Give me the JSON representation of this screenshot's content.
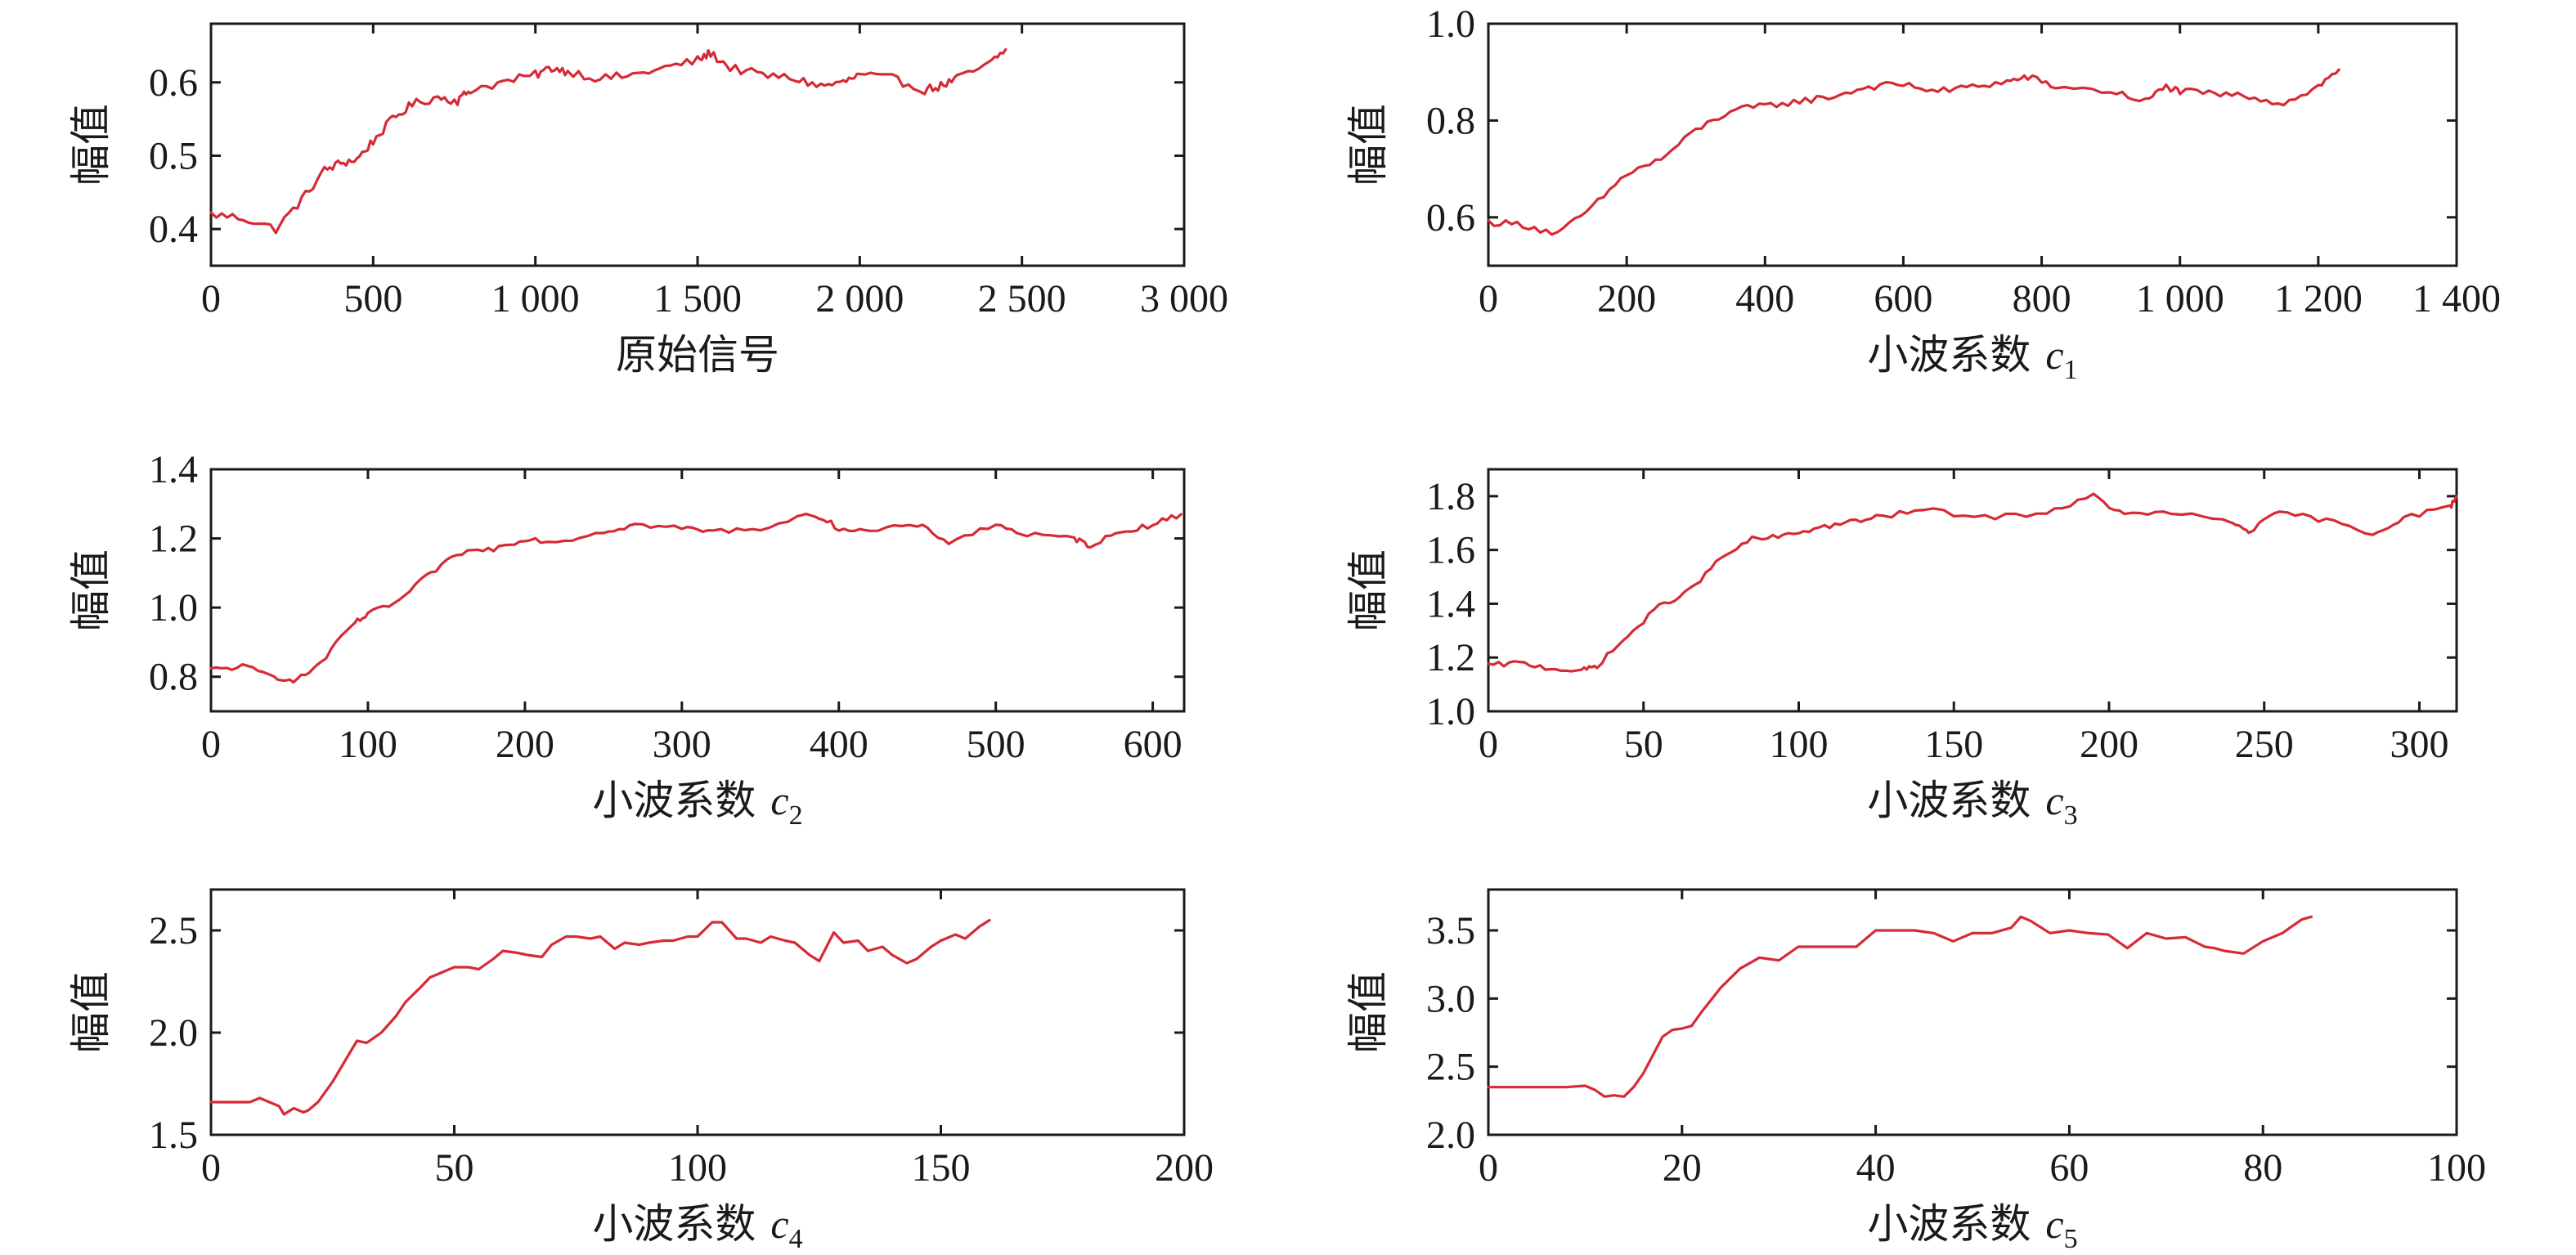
{
  "chart_data": [
    {
      "type": "line",
      "xlabel": "原始信号",
      "xlabel_sub": "",
      "ylabel": "幅值",
      "xlim": [
        0,
        3000
      ],
      "ylim": [
        0.35,
        0.68
      ],
      "xticks": [
        0,
        500,
        1000,
        1500,
        2000,
        2500,
        3000
      ],
      "xtick_labels": [
        "0",
        "500",
        "1 000",
        "1 500",
        "2 000",
        "2 500",
        "3 000"
      ],
      "yticks": [
        0.4,
        0.5,
        0.6
      ],
      "ytick_labels": [
        "0.4",
        "0.5",
        "0.6"
      ],
      "grid": false,
      "color": "#d62a36",
      "noise": 0.006,
      "series": [
        {
          "x": [
            0,
            100,
            200,
            280,
            350,
            400,
            450,
            500,
            560,
            620,
            700,
            760,
            800,
            900,
            1000,
            1050,
            1100,
            1200,
            1300,
            1400,
            1500,
            1540,
            1600,
            1700,
            1800,
            1880,
            1950,
            2000,
            2100,
            2200,
            2250,
            2300,
            2400,
            2450
          ],
          "y": [
            0.42,
            0.415,
            0.4,
            0.44,
            0.48,
            0.49,
            0.495,
            0.52,
            0.55,
            0.57,
            0.58,
            0.575,
            0.59,
            0.6,
            0.61,
            0.62,
            0.615,
            0.605,
            0.61,
            0.62,
            0.63,
            0.64,
            0.62,
            0.61,
            0.605,
            0.595,
            0.6,
            0.61,
            0.605,
            0.59,
            0.595,
            0.605,
            0.625,
            0.645
          ]
        }
      ]
    },
    {
      "type": "line",
      "xlabel": "小波系数",
      "xlabel_sub": "1",
      "ylabel": "幅值",
      "xlim": [
        0,
        1400
      ],
      "ylim": [
        0.5,
        1.0
      ],
      "xticks": [
        0,
        200,
        400,
        600,
        800,
        1000,
        1200,
        1400
      ],
      "xtick_labels": [
        "0",
        "200",
        "400",
        "600",
        "800",
        "1 000",
        "1 200",
        "1 400"
      ],
      "yticks": [
        0.6,
        0.8,
        1.0
      ],
      "ytick_labels": [
        "0.6",
        "0.8",
        "1.0"
      ],
      "grid": false,
      "color": "#d62a36",
      "noise": 0.007,
      "series": [
        {
          "x": [
            0,
            50,
            100,
            150,
            200,
            250,
            300,
            350,
            400,
            450,
            500,
            550,
            600,
            650,
            700,
            750,
            780,
            820,
            900,
            950,
            980,
            1000,
            1050,
            1100,
            1150,
            1200,
            1230
          ],
          "y": [
            0.59,
            0.585,
            0.565,
            0.62,
            0.69,
            0.72,
            0.78,
            0.82,
            0.83,
            0.84,
            0.85,
            0.87,
            0.875,
            0.86,
            0.87,
            0.88,
            0.89,
            0.87,
            0.86,
            0.84,
            0.87,
            0.86,
            0.855,
            0.85,
            0.835,
            0.87,
            0.905
          ]
        }
      ]
    },
    {
      "type": "line",
      "xlabel": "小波系数",
      "xlabel_sub": "2",
      "ylabel": "幅值",
      "xlim": [
        0,
        620
      ],
      "ylim": [
        0.7,
        1.4
      ],
      "xticks": [
        0,
        100,
        200,
        300,
        400,
        500,
        600
      ],
      "xtick_labels": [
        "0",
        "100",
        "200",
        "300",
        "400",
        "500",
        "600"
      ],
      "yticks": [
        0.8,
        1.0,
        1.2,
        1.4
      ],
      "ytick_labels": [
        "0.8",
        "1.0",
        "1.2",
        "1.4"
      ],
      "grid": false,
      "color": "#d62a36",
      "noise": 0.008,
      "series": [
        {
          "x": [
            0,
            20,
            40,
            55,
            70,
            90,
            100,
            120,
            140,
            160,
            180,
            200,
            220,
            250,
            270,
            300,
            320,
            350,
            385,
            400,
            420,
            450,
            470,
            500,
            520,
            550,
            560,
            580,
            600,
            618
          ],
          "y": [
            0.82,
            0.83,
            0.8,
            0.79,
            0.84,
            0.95,
            0.98,
            1.02,
            1.1,
            1.16,
            1.17,
            1.2,
            1.19,
            1.22,
            1.24,
            1.23,
            1.22,
            1.23,
            1.27,
            1.23,
            1.22,
            1.24,
            1.19,
            1.24,
            1.21,
            1.2,
            1.18,
            1.22,
            1.24,
            1.27
          ]
        }
      ]
    },
    {
      "type": "line",
      "xlabel": "小波系数",
      "xlabel_sub": "3",
      "ylabel": "幅值",
      "xlim": [
        0,
        312
      ],
      "ylim": [
        1.0,
        1.9
      ],
      "xticks": [
        0,
        50,
        100,
        150,
        200,
        250,
        300
      ],
      "xtick_labels": [
        "0",
        "50",
        "100",
        "150",
        "200",
        "250",
        "300"
      ],
      "yticks": [
        1.0,
        1.2,
        1.4,
        1.6,
        1.8
      ],
      "ytick_labels": [
        "1.0",
        "1.2",
        "1.4",
        "1.6",
        "1.8"
      ],
      "grid": false,
      "color": "#d62a36",
      "noise": 0.01,
      "series": [
        {
          "x": [
            0,
            10,
            20,
            30,
            35,
            45,
            55,
            65,
            75,
            85,
            95,
            105,
            115,
            125,
            140,
            160,
            180,
            195,
            205,
            220,
            240,
            245,
            255,
            270,
            285,
            295,
            310,
            312
          ],
          "y": [
            1.17,
            1.18,
            1.16,
            1.15,
            1.17,
            1.28,
            1.39,
            1.45,
            1.57,
            1.64,
            1.65,
            1.68,
            1.7,
            1.72,
            1.75,
            1.72,
            1.74,
            1.8,
            1.73,
            1.74,
            1.7,
            1.67,
            1.74,
            1.71,
            1.66,
            1.72,
            1.76,
            1.8
          ]
        }
      ]
    },
    {
      "type": "line",
      "xlabel": "小波系数",
      "xlabel_sub": "4",
      "ylabel": "幅值",
      "xlim": [
        0,
        200
      ],
      "ylim": [
        1.5,
        2.7
      ],
      "xticks": [
        0,
        50,
        100,
        150,
        200
      ],
      "xtick_labels": [
        "0",
        "50",
        "100",
        "150",
        "200"
      ],
      "yticks": [
        1.5,
        2.0,
        2.5
      ],
      "ytick_labels": [
        "1.5",
        "2.0",
        "2.5"
      ],
      "grid": false,
      "color": "#d62a36",
      "noise": 0,
      "series": [
        {
          "x": [
            0,
            5,
            8,
            10,
            12,
            14,
            15,
            17,
            19,
            20,
            22,
            25,
            28,
            30,
            32,
            35,
            38,
            40,
            43,
            45,
            48,
            50,
            53,
            55,
            58,
            60,
            63,
            65,
            68,
            70,
            73,
            75,
            78,
            80,
            83,
            85,
            88,
            90,
            93,
            95,
            98,
            100,
            103,
            105,
            108,
            110,
            113,
            115,
            118,
            120,
            123,
            125,
            128,
            130,
            133,
            135,
            138,
            140,
            143,
            145,
            148,
            150,
            153,
            155,
            158,
            160
          ],
          "y": [
            1.66,
            1.66,
            1.66,
            1.68,
            1.66,
            1.64,
            1.6,
            1.63,
            1.61,
            1.62,
            1.66,
            1.76,
            1.88,
            1.96,
            1.95,
            2.0,
            2.08,
            2.15,
            2.22,
            2.27,
            2.3,
            2.32,
            2.32,
            2.31,
            2.36,
            2.4,
            2.39,
            2.38,
            2.37,
            2.43,
            2.47,
            2.47,
            2.46,
            2.47,
            2.41,
            2.44,
            2.43,
            2.44,
            2.45,
            2.45,
            2.47,
            2.47,
            2.54,
            2.54,
            2.46,
            2.46,
            2.44,
            2.47,
            2.45,
            2.44,
            2.38,
            2.35,
            2.49,
            2.44,
            2.45,
            2.4,
            2.42,
            2.38,
            2.34,
            2.36,
            2.42,
            2.45,
            2.48,
            2.46,
            2.52,
            2.55
          ]
        }
      ]
    },
    {
      "type": "line",
      "xlabel": "小波系数",
      "xlabel_sub": "5",
      "ylabel": "幅值",
      "xlim": [
        0,
        100
      ],
      "ylim": [
        2.0,
        3.8
      ],
      "xticks": [
        0,
        20,
        40,
        60,
        80,
        100
      ],
      "xtick_labels": [
        "0",
        "20",
        "40",
        "60",
        "80",
        "100"
      ],
      "yticks": [
        2.0,
        2.5,
        3.0,
        3.5
      ],
      "ytick_labels": [
        "2.0",
        "2.5",
        "3.0",
        "3.5"
      ],
      "grid": false,
      "color": "#d62a36",
      "noise": 0,
      "series": [
        {
          "x": [
            0,
            4,
            8,
            10,
            11,
            12,
            13,
            14,
            15,
            16,
            18,
            19,
            20,
            21,
            22,
            24,
            26,
            28,
            30,
            32,
            34,
            36,
            38,
            40,
            42,
            44,
            46,
            48,
            50,
            52,
            54,
            55,
            56,
            58,
            60,
            62,
            64,
            66,
            68,
            70,
            72,
            74,
            75,
            76,
            78,
            80,
            82,
            84,
            85
          ],
          "y": [
            2.35,
            2.35,
            2.35,
            2.36,
            2.33,
            2.28,
            2.29,
            2.28,
            2.35,
            2.45,
            2.72,
            2.77,
            2.78,
            2.8,
            2.9,
            3.08,
            3.22,
            3.3,
            3.28,
            3.38,
            3.38,
            3.38,
            3.38,
            3.5,
            3.5,
            3.5,
            3.48,
            3.42,
            3.48,
            3.48,
            3.52,
            3.6,
            3.57,
            3.48,
            3.5,
            3.48,
            3.47,
            3.37,
            3.48,
            3.44,
            3.45,
            3.38,
            3.37,
            3.35,
            3.33,
            3.42,
            3.48,
            3.58,
            3.6
          ]
        }
      ]
    }
  ]
}
